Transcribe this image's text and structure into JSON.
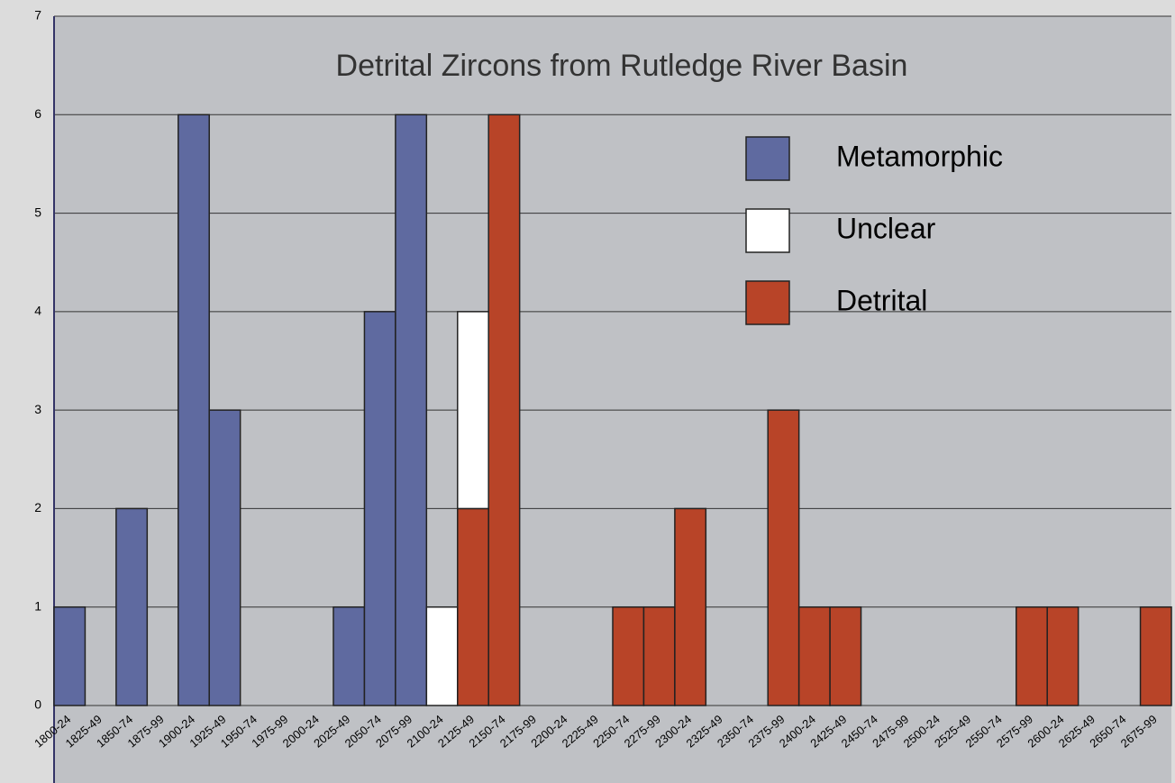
{
  "chart_data": {
    "type": "stacked_bar",
    "title": "Detrital Zircons from Rutledge River Basin",
    "categories": [
      "1800-24",
      "1825-49",
      "1850-74",
      "1875-99",
      "1900-24",
      "1925-49",
      "1950-74",
      "1975-99",
      "2000-24",
      "2025-49",
      "2050-74",
      "2075-99",
      "2100-24",
      "2125-49",
      "2150-74",
      "2175-99",
      "2200-24",
      "2225-49",
      "2250-74",
      "2275-99",
      "2300-24",
      "2325-49",
      "2350-74",
      "2375-99",
      "2400-24",
      "2425-49",
      "2450-74",
      "2475-99",
      "2500-24",
      "2525-49",
      "2550-74",
      "2575-99",
      "2600-24",
      "2625-49",
      "2650-74",
      "2675-99"
    ],
    "series": [
      {
        "name": "Metamorphic",
        "color": "#5f6aa0",
        "values": [
          1,
          0,
          2,
          0,
          6,
          3,
          0,
          0,
          0,
          1,
          4,
          6,
          0,
          0,
          0,
          0,
          0,
          0,
          0,
          0,
          0,
          0,
          0,
          0,
          0,
          0,
          0,
          0,
          0,
          0,
          0,
          0,
          0,
          0,
          0,
          0
        ]
      },
      {
        "name": "Unclear",
        "color": "#ffffff",
        "values": [
          0,
          0,
          0,
          0,
          0,
          0,
          0,
          0,
          0,
          0,
          0,
          0,
          1,
          2,
          0,
          0,
          0,
          0,
          0,
          0,
          0,
          0,
          0,
          0,
          0,
          0,
          0,
          0,
          0,
          0,
          0,
          0,
          0,
          0,
          0,
          0
        ]
      },
      {
        "name": "Detrital",
        "color": "#b84428",
        "values": [
          0,
          0,
          0,
          0,
          0,
          0,
          0,
          0,
          0,
          0,
          0,
          0,
          0,
          2,
          6,
          0,
          0,
          0,
          1,
          1,
          2,
          0,
          0,
          3,
          1,
          1,
          0,
          0,
          0,
          0,
          0,
          1,
          1,
          0,
          0,
          1
        ]
      }
    ],
    "ylim": [
      0,
      7
    ],
    "yticks": [
      0,
      1,
      2,
      3,
      4,
      5,
      6,
      7
    ],
    "grid": true,
    "legend": "upper right"
  }
}
